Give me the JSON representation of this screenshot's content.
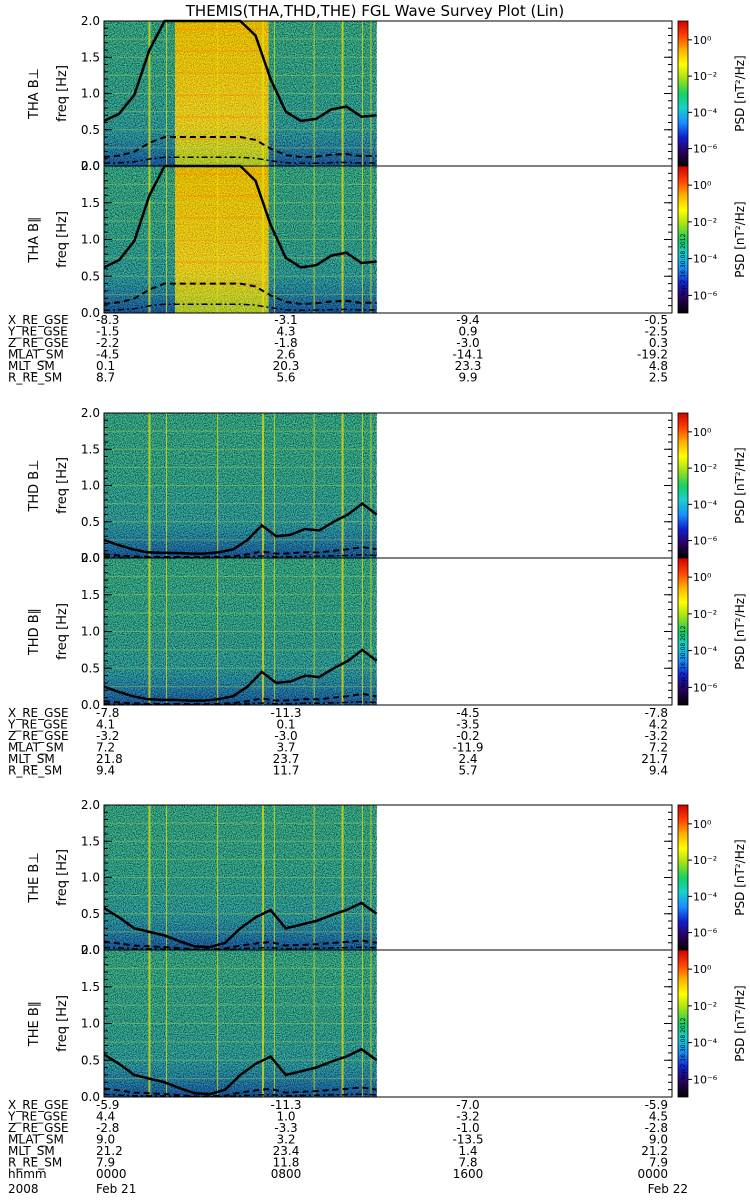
{
  "title": "THEMIS(THA,THD,THE) FGL Wave Survey Plot (Lin)",
  "timestamp": "Sun Sep  2 16:30:08 2012",
  "colorbar": {
    "label": "PSD [nT²/Hz]",
    "ticks": [
      "10⁰",
      "10⁻²",
      "10⁻⁴",
      "10⁻⁶"
    ],
    "stops": [
      "#000000",
      "#2c0060",
      "#1020d0",
      "#1890ff",
      "#18d0d0",
      "#18d060",
      "#a0e018",
      "#ffff00",
      "#ffb000",
      "#ff4000",
      "#d00000"
    ]
  },
  "colors": {
    "text": "#000000",
    "blank": "#ffffff"
  },
  "chart_data": [
    {
      "type": "heatmap",
      "probe": "THA",
      "component": "B⊥",
      "ylabel_probe": "THA B⊥",
      "ylabel": "freq [Hz]",
      "ylim": [
        0,
        2.0
      ],
      "yticks": [
        "0.0",
        "0.5",
        "1.0",
        "1.5",
        "2.0"
      ],
      "data_coverage": [
        0,
        0.48
      ],
      "wave_band": [
        0.125,
        0.29
      ],
      "cyclotron_trace": [
        0.62,
        0.72,
        0.98,
        1.6,
        2.0,
        2.0,
        2.0,
        2.0,
        2.0,
        2.0,
        1.8,
        1.2,
        0.75,
        0.62,
        0.65,
        0.78,
        0.82,
        0.68,
        0.7
      ]
    },
    {
      "type": "heatmap",
      "probe": "THA",
      "component": "B∥",
      "ylabel_probe": "THA B∥",
      "ylabel": "freq [Hz]",
      "ylim": [
        0,
        2.0
      ],
      "yticks": [
        "0.0",
        "0.5",
        "1.0",
        "1.5",
        "2.0"
      ],
      "data_coverage": [
        0,
        0.48
      ],
      "wave_band": [
        0.125,
        0.29
      ],
      "cyclotron_trace": [
        0.62,
        0.72,
        0.98,
        1.6,
        2.0,
        2.0,
        2.0,
        2.0,
        2.0,
        2.0,
        1.8,
        1.2,
        0.75,
        0.62,
        0.65,
        0.78,
        0.82,
        0.68,
        0.7
      ]
    },
    {
      "type": "heatmap",
      "probe": "THD",
      "component": "B⊥",
      "ylabel_probe": "THD B⊥",
      "ylabel": "freq [Hz]",
      "ylim": [
        0,
        2.0
      ],
      "yticks": [
        "0.0",
        "0.5",
        "1.0",
        "1.5",
        "2.0"
      ],
      "data_coverage": [
        0,
        0.48
      ],
      "wave_band": null,
      "cyclotron_trace": [
        0.25,
        0.18,
        0.12,
        0.08,
        0.07,
        0.07,
        0.06,
        0.06,
        0.08,
        0.12,
        0.25,
        0.45,
        0.3,
        0.32,
        0.4,
        0.38,
        0.5,
        0.6,
        0.75,
        0.6
      ]
    },
    {
      "type": "heatmap",
      "probe": "THD",
      "component": "B∥",
      "ylabel_probe": "THD B∥",
      "ylabel": "freq [Hz]",
      "ylim": [
        0,
        2.0
      ],
      "yticks": [
        "0.0",
        "0.5",
        "1.0",
        "1.5",
        "2.0"
      ],
      "data_coverage": [
        0,
        0.48
      ],
      "wave_band": null,
      "cyclotron_trace": [
        0.25,
        0.18,
        0.12,
        0.08,
        0.07,
        0.07,
        0.06,
        0.06,
        0.08,
        0.12,
        0.25,
        0.45,
        0.3,
        0.32,
        0.4,
        0.38,
        0.5,
        0.6,
        0.75,
        0.6
      ]
    },
    {
      "type": "heatmap",
      "probe": "THE",
      "component": "B⊥",
      "ylabel_probe": "THE B⊥",
      "ylabel": "freq [Hz]",
      "ylim": [
        0,
        2.0
      ],
      "yticks": [
        "0.0",
        "0.5",
        "1.0",
        "1.5",
        "2.0"
      ],
      "data_coverage": [
        0,
        0.48
      ],
      "wave_band": null,
      "cyclotron_trace": [
        0.58,
        0.45,
        0.3,
        0.25,
        0.2,
        0.12,
        0.05,
        0.04,
        0.1,
        0.3,
        0.45,
        0.55,
        0.3,
        0.35,
        0.4,
        0.48,
        0.55,
        0.65,
        0.5
      ]
    },
    {
      "type": "heatmap",
      "probe": "THE",
      "component": "B∥",
      "ylabel_probe": "THE B∥",
      "ylabel": "freq [Hz]",
      "ylim": [
        0,
        2.0
      ],
      "yticks": [
        "0.0",
        "0.5",
        "1.0",
        "1.5",
        "2.0"
      ],
      "data_coverage": [
        0,
        0.48
      ],
      "wave_band": null,
      "cyclotron_trace": [
        0.58,
        0.45,
        0.3,
        0.25,
        0.2,
        0.12,
        0.05,
        0.04,
        0.1,
        0.3,
        0.45,
        0.55,
        0.3,
        0.35,
        0.4,
        0.48,
        0.55,
        0.65,
        0.5
      ]
    }
  ],
  "ephemeris": [
    {
      "rows": [
        {
          "label": "X_RE_GSE",
          "values": [
            "-8.3",
            "-3.1",
            "-9.4",
            "-0.5"
          ]
        },
        {
          "label": "Y_RE_GSE",
          "values": [
            "-1.5",
            "4.3",
            "0.9",
            "-2.5"
          ]
        },
        {
          "label": "Z_RE_GSE",
          "values": [
            "-2.2",
            "-1.8",
            "-3.0",
            "0.3"
          ]
        },
        {
          "label": "MLAT_SM",
          "values": [
            "-4.5",
            "2.6",
            "-14.1",
            "-19.2"
          ]
        },
        {
          "label": "MLT_SM",
          "values": [
            "0.1",
            "20.3",
            "23.3",
            "4.8"
          ]
        },
        {
          "label": "R_RE_SM",
          "values": [
            "8.7",
            "5.6",
            "9.9",
            "2.5"
          ]
        }
      ]
    },
    {
      "rows": [
        {
          "label": "X_RE_GSE",
          "values": [
            "-7.8",
            "-11.3",
            "-4.5",
            "-7.8"
          ]
        },
        {
          "label": "Y_RE_GSE",
          "values": [
            "4.1",
            "0.1",
            "-3.5",
            "4.2"
          ]
        },
        {
          "label": "Z_RE_GSE",
          "values": [
            "-3.2",
            "-3.0",
            "-0.2",
            "-3.2"
          ]
        },
        {
          "label": "MLAT_SM",
          "values": [
            "7.2",
            "3.7",
            "-11.9",
            "7.2"
          ]
        },
        {
          "label": "MLT_SM",
          "values": [
            "21.8",
            "23.7",
            "2.4",
            "21.7"
          ]
        },
        {
          "label": "R_RE_SM",
          "values": [
            "9.4",
            "11.7",
            "5.7",
            "9.4"
          ]
        }
      ]
    },
    {
      "rows": [
        {
          "label": "X_RE_GSE",
          "values": [
            "-5.9",
            "-11.3",
            "-7.0",
            "-5.9"
          ]
        },
        {
          "label": "Y_RE_GSE",
          "values": [
            "4.4",
            "1.0",
            "-3.2",
            "4.5"
          ]
        },
        {
          "label": "Z_RE_GSE",
          "values": [
            "-2.8",
            "-3.3",
            "-1.0",
            "-2.8"
          ]
        },
        {
          "label": "MLAT_SM",
          "values": [
            "9.0",
            "3.2",
            "-13.5",
            "9.0"
          ]
        },
        {
          "label": "MLT_SM",
          "values": [
            "21.2",
            "23.4",
            "1.4",
            "21.2"
          ]
        },
        {
          "label": "R_RE_SM",
          "values": [
            "7.9",
            "11.8",
            "7.8",
            "7.9"
          ]
        },
        {
          "label": "hhmm",
          "values": [
            "0000",
            "0800",
            "1600",
            "0000"
          ]
        }
      ]
    }
  ],
  "date_row": {
    "year": "2008",
    "start": "Feb 21",
    "end": "Feb 22"
  }
}
